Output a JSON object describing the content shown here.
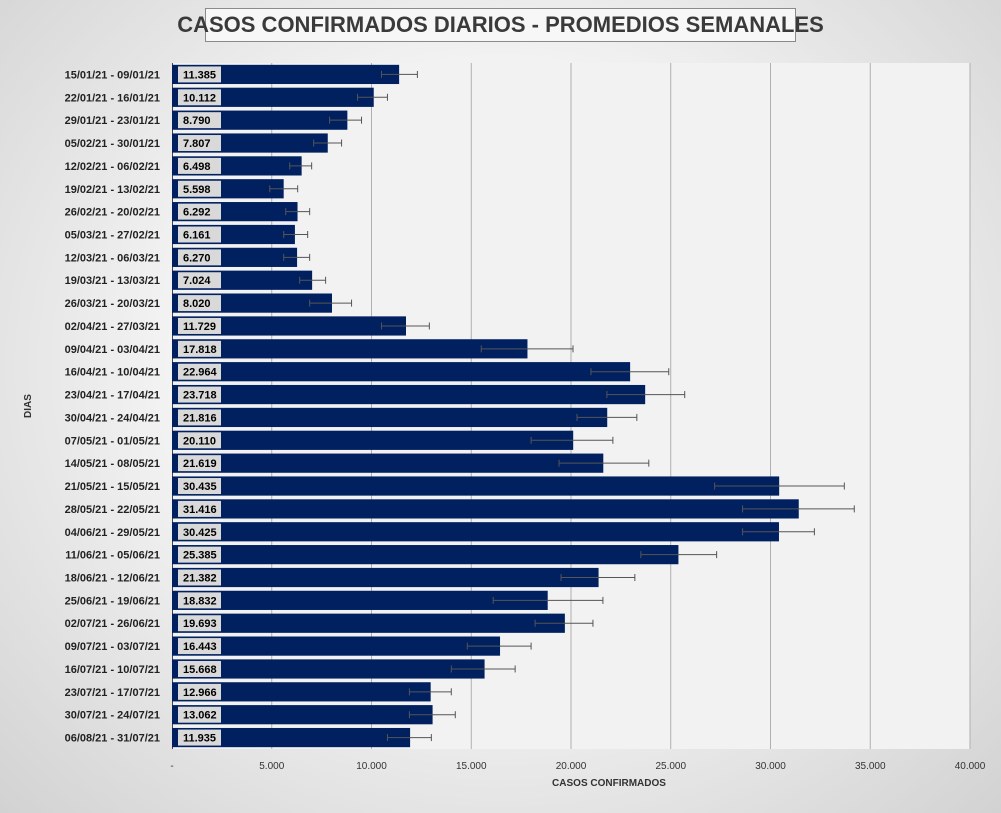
{
  "chart_data": {
    "type": "bar",
    "orientation": "horizontal",
    "title": "CASOS CONFIRMADOS DIARIOS - PROMEDIOS SEMANALES",
    "xlabel": "CASOS CONFIRMADOS",
    "ylabel": "DIAS",
    "xlim": [
      0,
      40000
    ],
    "xticks": [
      0,
      5000,
      10000,
      15000,
      20000,
      25000,
      30000,
      35000,
      40000
    ],
    "xtick_labels": [
      "-",
      "5.000",
      "10.000",
      "15.000",
      "20.000",
      "25.000",
      "30.000",
      "35.000",
      "40.000"
    ],
    "grid": true,
    "bar_color": "#002060",
    "categories": [
      "15/01/21 - 09/01/21",
      "22/01/21 - 16/01/21",
      "29/01/21 - 23/01/21",
      "05/02/21 - 30/01/21",
      "12/02/21 - 06/02/21",
      "19/02/21 - 13/02/21",
      "26/02/21 - 20/02/21",
      "05/03/21 - 27/02/21",
      "12/03/21 - 06/03/21",
      "19/03/21 - 13/03/21",
      "26/03/21 - 20/03/21",
      "02/04/21 - 27/03/21",
      "09/04/21 - 03/04/21",
      "16/04/21 - 10/04/21",
      "23/04/21 - 17/04/21",
      "30/04/21 - 24/04/21",
      "07/05/21 - 01/05/21",
      "14/05/21 - 08/05/21",
      "21/05/21 - 15/05/21",
      "28/05/21 - 22/05/21",
      "04/06/21 - 29/05/21",
      "11/06/21 - 05/06/21",
      "18/06/21 - 12/06/21",
      "25/06/21 - 19/06/21",
      "02/07/21 - 26/06/21",
      "09/07/21 - 03/07/21",
      "16/07/21 - 10/07/21",
      "23/07/21 - 17/07/21",
      "30/07/21 - 24/07/21",
      "06/08/21 - 31/07/21"
    ],
    "values": [
      11385,
      10112,
      8790,
      7807,
      6498,
      5598,
      6292,
      6161,
      6270,
      7024,
      8020,
      11729,
      17818,
      22964,
      23718,
      21816,
      20110,
      21619,
      30435,
      31416,
      30425,
      25385,
      21382,
      18832,
      19693,
      16443,
      15668,
      12966,
      13062,
      11935
    ],
    "value_labels": [
      "11.385",
      "10.112",
      "8.790",
      "7.807",
      "6.498",
      "5.598",
      "6.292",
      "6.161",
      "6.270",
      "7.024",
      "8.020",
      "11.729",
      "17.818",
      "22.964",
      "23.718",
      "21.816",
      "20.110",
      "21.619",
      "30.435",
      "31.416",
      "30.425",
      "25.385",
      "21.382",
      "18.832",
      "19.693",
      "16.443",
      "15.668",
      "12.966",
      "13.062",
      "11.935"
    ],
    "error_low": [
      10500,
      9300,
      7900,
      7100,
      5900,
      4900,
      5700,
      5600,
      5600,
      6400,
      6900,
      10500,
      15500,
      21000,
      21800,
      20300,
      18000,
      19400,
      27200,
      28600,
      28600,
      23500,
      19500,
      16100,
      18200,
      14800,
      14000,
      11900,
      11900,
      10800
    ],
    "error_high": [
      12300,
      10800,
      9500,
      8500,
      7000,
      6300,
      6900,
      6800,
      6900,
      7700,
      9000,
      12900,
      20100,
      24900,
      25700,
      23300,
      22100,
      23900,
      33700,
      34200,
      32200,
      27300,
      23200,
      21600,
      21100,
      18000,
      17200,
      14000,
      14200,
      13000
    ]
  }
}
